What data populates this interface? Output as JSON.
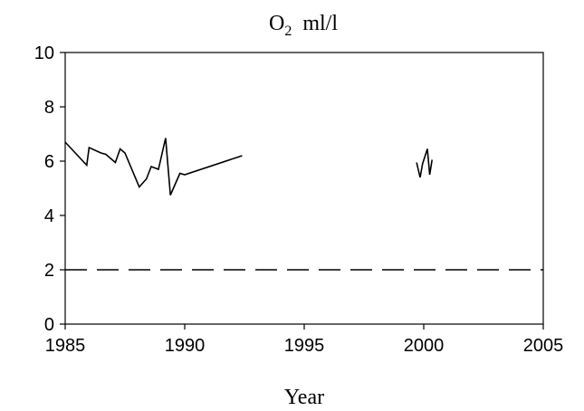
{
  "chart_data": {
    "type": "line",
    "title": {
      "main": "O",
      "sub": "2",
      "unit": "ml/l"
    },
    "xlabel": "Year",
    "ylabel": "",
    "xlim": [
      1985,
      2005
    ],
    "ylim": [
      0,
      10
    ],
    "x_ticks": [
      1985,
      1990,
      1995,
      2000,
      2005
    ],
    "y_ticks": [
      0,
      2,
      4,
      6,
      8,
      10
    ],
    "grid": false,
    "series": [
      {
        "style": "solid",
        "color": "#000000",
        "x": [
          1985.0,
          1985.9,
          1986.0,
          1986.5,
          1986.7,
          1987.1,
          1987.3,
          1987.5,
          1988.1,
          1988.4,
          1988.6,
          1988.9,
          1989.2,
          1989.4,
          1989.8,
          1990.0,
          1992.4
        ],
        "y": [
          6.7,
          5.85,
          6.5,
          6.3,
          6.25,
          5.95,
          6.45,
          6.3,
          5.05,
          5.35,
          5.8,
          5.7,
          6.85,
          4.75,
          5.55,
          5.5,
          6.2
        ]
      },
      {
        "style": "solid",
        "color": "#000000",
        "x": [
          1999.7,
          1999.85,
          1999.95,
          2000.15,
          2000.25,
          2000.35
        ],
        "y": [
          5.95,
          5.4,
          5.9,
          6.45,
          5.5,
          6.05
        ]
      },
      {
        "style": "dashed",
        "color": "#000000",
        "x": [
          1985,
          2005
        ],
        "y": [
          2,
          2
        ]
      }
    ]
  }
}
